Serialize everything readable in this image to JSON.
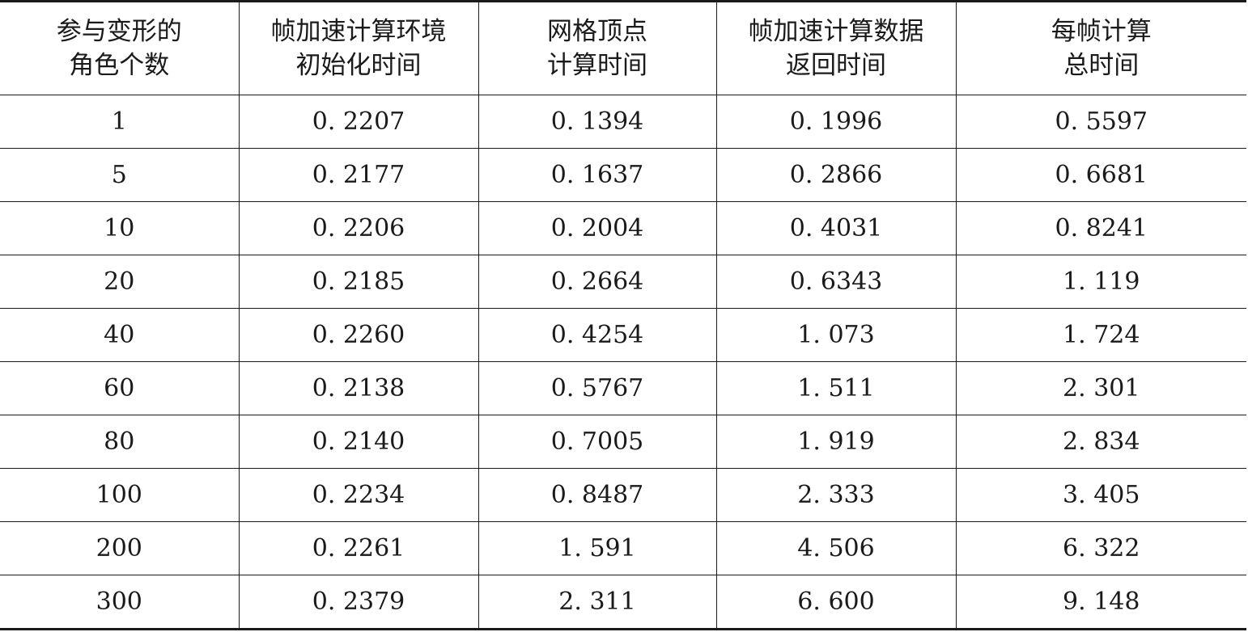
{
  "table": {
    "headers": [
      [
        "参与变形的",
        "角色个数"
      ],
      [
        "帧加速计算环境",
        "初始化时间"
      ],
      [
        "网格顶点",
        "计算时间"
      ],
      [
        "帧加速计算数据",
        "返回时间"
      ],
      [
        "每帧计算",
        "总时间"
      ]
    ],
    "rows": [
      [
        "1",
        "0. 2207",
        "0. 1394",
        "0. 1996",
        "0. 5597"
      ],
      [
        "5",
        "0. 2177",
        "0. 1637",
        "0. 2866",
        "0. 6681"
      ],
      [
        "10",
        "0. 2206",
        "0. 2004",
        "0. 4031",
        "0. 8241"
      ],
      [
        "20",
        "0. 2185",
        "0. 2664",
        "0. 6343",
        "1. 119"
      ],
      [
        "40",
        "0. 2260",
        "0. 4254",
        "1. 073",
        "1. 724"
      ],
      [
        "60",
        "0. 2138",
        "0. 5767",
        "1. 511",
        "2. 301"
      ],
      [
        "80",
        "0. 2140",
        "0. 7005",
        "1. 919",
        "2. 834"
      ],
      [
        "100",
        "0. 2234",
        "0. 8487",
        "2. 333",
        "3. 405"
      ],
      [
        "200",
        "0. 2261",
        "1. 591",
        "4. 506",
        "6. 322"
      ],
      [
        "300",
        "0. 2379",
        "2. 311",
        "6. 600",
        "9. 148"
      ]
    ]
  }
}
